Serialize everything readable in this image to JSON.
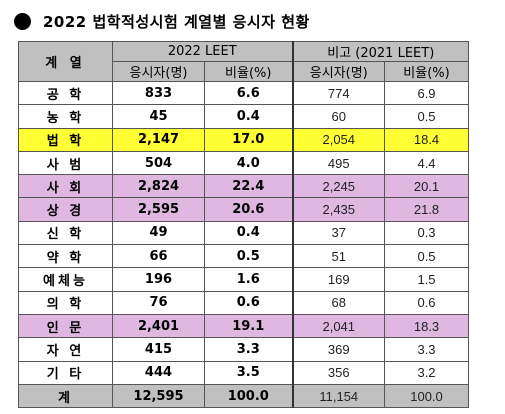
{
  "title": "2022 법학적성시험 계열별 응시자 현황",
  "header": {
    "category": "계 열",
    "group_2022": "2022 LEET",
    "group_2021": "비고 (2021 LEET)",
    "col_applicants": "응시자(명)",
    "col_ratio": "비율(%)"
  },
  "rows": [
    {
      "cat": "공 학",
      "a22": "833",
      "r22": "6.6",
      "a21": "774",
      "r21": "6.9",
      "hl": ""
    },
    {
      "cat": "농 학",
      "a22": "45",
      "r22": "0.4",
      "a21": "60",
      "r21": "0.5",
      "hl": ""
    },
    {
      "cat": "법 학",
      "a22": "2,147",
      "r22": "17.0",
      "a21": "2,054",
      "r21": "18.4",
      "hl": "yellow"
    },
    {
      "cat": "사 범",
      "a22": "504",
      "r22": "4.0",
      "a21": "495",
      "r21": "4.4",
      "hl": ""
    },
    {
      "cat": "사 회",
      "a22": "2,824",
      "r22": "22.4",
      "a21": "2,245",
      "r21": "20.1",
      "hl": "purple"
    },
    {
      "cat": "상 경",
      "a22": "2,595",
      "r22": "20.6",
      "a21": "2,435",
      "r21": "21.8",
      "hl": "purple"
    },
    {
      "cat": "신 학",
      "a22": "49",
      "r22": "0.4",
      "a21": "37",
      "r21": "0.3",
      "hl": ""
    },
    {
      "cat": "약 학",
      "a22": "66",
      "r22": "0.5",
      "a21": "51",
      "r21": "0.5",
      "hl": ""
    },
    {
      "cat": "예체능",
      "a22": "196",
      "r22": "1.6",
      "a21": "169",
      "r21": "1.5",
      "hl": ""
    },
    {
      "cat": "의 학",
      "a22": "76",
      "r22": "0.6",
      "a21": "68",
      "r21": "0.6",
      "hl": ""
    },
    {
      "cat": "인 문",
      "a22": "2,401",
      "r22": "19.1",
      "a21": "2,041",
      "r21": "18.3",
      "hl": "purple"
    },
    {
      "cat": "자 연",
      "a22": "415",
      "r22": "3.3",
      "a21": "369",
      "r21": "3.3",
      "hl": ""
    },
    {
      "cat": "기 타",
      "a22": "444",
      "r22": "3.5",
      "a21": "356",
      "r21": "3.2",
      "hl": ""
    }
  ],
  "total": {
    "cat": "계",
    "a22": "12,595",
    "r22": "100.0",
    "a21": "11,154",
    "r21": "100.0"
  },
  "colors": {
    "header_gray": "#c0c0c0",
    "yellow": "#ffff33",
    "purple": "#dfb7e1"
  }
}
